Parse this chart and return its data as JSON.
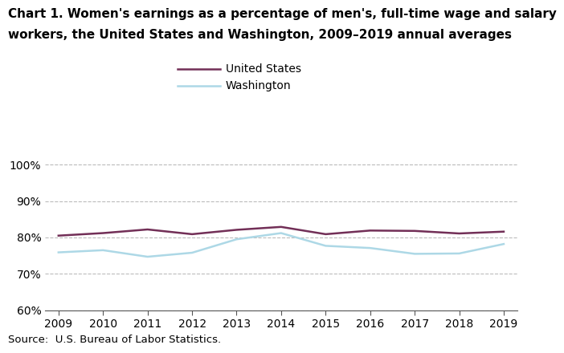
{
  "title_line1": "Chart 1. Women's earnings as a percentage of men's, full-time wage and salary",
  "title_line2": "workers, the United States and Washington, 2009–2019 annual averages",
  "years": [
    2009,
    2010,
    2011,
    2012,
    2013,
    2014,
    2015,
    2016,
    2017,
    2018,
    2019
  ],
  "us_values": [
    80.5,
    81.2,
    82.2,
    80.9,
    82.1,
    82.9,
    80.9,
    81.9,
    81.8,
    81.1,
    81.6
  ],
  "wa_values": [
    75.9,
    76.5,
    74.7,
    75.8,
    79.5,
    81.2,
    77.7,
    77.1,
    75.5,
    75.6,
    78.2
  ],
  "us_color": "#722F57",
  "wa_color": "#ADD8E6",
  "us_label": "United States",
  "wa_label": "Washington",
  "ylim": [
    60,
    102
  ],
  "yticks": [
    60,
    70,
    80,
    90,
    100
  ],
  "ytick_labels": [
    "60%",
    "70%",
    "80%",
    "90%",
    "100%"
  ],
  "grid_color": "#BBBBBB",
  "source_text": "Source:  U.S. Bureau of Labor Statistics.",
  "line_width": 1.8,
  "background_color": "#FFFFFF",
  "title_fontsize": 11,
  "tick_fontsize": 10,
  "source_fontsize": 9.5,
  "legend_fontsize": 10
}
